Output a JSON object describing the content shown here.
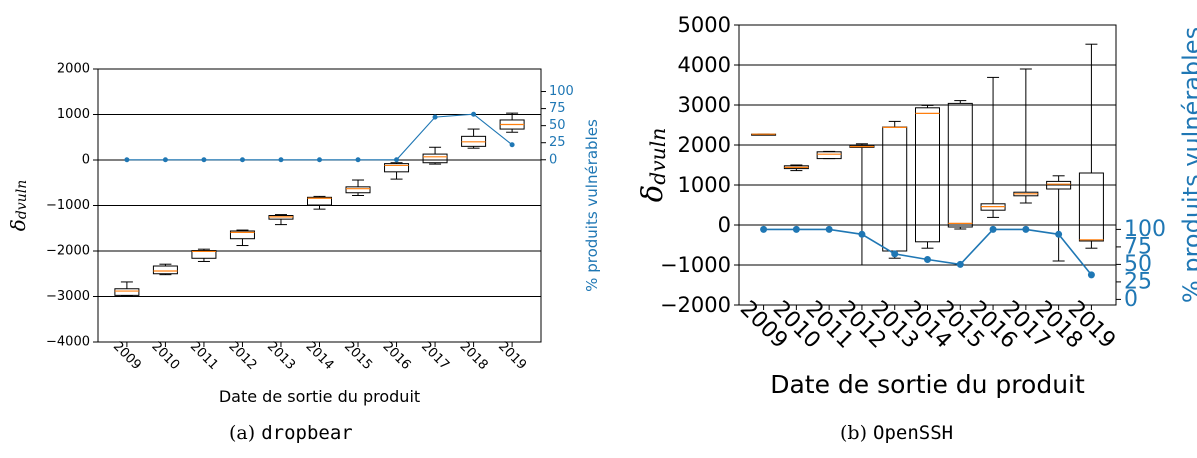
{
  "colors": {
    "box": "#000000",
    "median": "#ff7f0e",
    "pct": "#1f77b4",
    "grid": "#000000"
  },
  "captions": {
    "a_prefix": "(a)",
    "a_name": "dropbear",
    "b_prefix": "(b)",
    "b_name": "OpenSSH"
  },
  "chart_data": [
    {
      "type": "box",
      "id": "dropbear",
      "xlabel": "Date de sortie du produit",
      "ylabel": "δdvuln",
      "ylabel_main": "δ",
      "ylabel_sub": "dvuln",
      "y2label": "% produits vulnérables",
      "categories": [
        "2009",
        "2010",
        "2011",
        "2012",
        "2013",
        "2014",
        "2015",
        "2016",
        "2017",
        "2018",
        "2019"
      ],
      "ylim": [
        -4000,
        2000
      ],
      "yticks": [
        -4000,
        -3000,
        -2000,
        -1000,
        0,
        1000,
        2000
      ],
      "y2lim": [
        -267,
        133
      ],
      "y2ticks": [
        0,
        25,
        50,
        75,
        100
      ],
      "grid": "horizontal",
      "boxes": [
        {
          "whislo": -2990,
          "q1": -2975,
          "med": -2880,
          "q3": -2830,
          "whishi": -2680
        },
        {
          "whislo": -2520,
          "q1": -2500,
          "med": -2440,
          "q3": -2330,
          "whishi": -2290
        },
        {
          "whislo": -2230,
          "q1": -2160,
          "med": -2010,
          "q3": -1990,
          "whishi": -1960
        },
        {
          "whislo": -1880,
          "q1": -1730,
          "med": -1590,
          "q3": -1560,
          "whishi": -1540
        },
        {
          "whislo": -1420,
          "q1": -1300,
          "med": -1250,
          "q3": -1220,
          "whishi": -1200
        },
        {
          "whislo": -1080,
          "q1": -990,
          "med": -840,
          "q3": -820,
          "whishi": -800
        },
        {
          "whislo": -780,
          "q1": -720,
          "med": -630,
          "q3": -590,
          "whishi": -440
        },
        {
          "whislo": -420,
          "q1": -260,
          "med": -120,
          "q3": -80,
          "whishi": -60
        },
        {
          "whislo": -90,
          "q1": -60,
          "med": 70,
          "q3": 130,
          "whishi": 280
        },
        {
          "whislo": 260,
          "q1": 300,
          "med": 400,
          "q3": 520,
          "whishi": 680
        },
        {
          "whislo": 610,
          "q1": 680,
          "med": 780,
          "q3": 880,
          "whishi": 1030
        }
      ],
      "series": [
        {
          "name": "% produits vulnérables",
          "values": [
            0,
            0,
            0,
            0,
            0,
            0,
            0,
            0,
            62.5,
            66.7,
            22
          ]
        }
      ]
    },
    {
      "type": "box",
      "id": "openssh",
      "xlabel": "Date de sortie du produit",
      "ylabel": "δdvuln",
      "ylabel_main": "δ",
      "ylabel_sub": "dvuln",
      "y2label": "% produits vulnérables",
      "categories": [
        "2009",
        "2010",
        "2011",
        "2012",
        "2013",
        "2014",
        "2015",
        "2016",
        "2017",
        "2018",
        "2019"
      ],
      "ylim": [
        -2000,
        5000
      ],
      "yticks": [
        -2000,
        -1000,
        0,
        1000,
        2000,
        3000,
        4000,
        5000
      ],
      "y2lim": [
        -8,
        392
      ],
      "y2ticks": [
        0,
        25,
        50,
        75,
        100
      ],
      "grid": "horizontal",
      "boxes": [
        {
          "whislo": 2270,
          "q1": 2270,
          "med": 2270,
          "q3": 2270,
          "whishi": 2270
        },
        {
          "whislo": 1360,
          "q1": 1410,
          "med": 1440,
          "q3": 1480,
          "whishi": 1500
        },
        {
          "whislo": 1660,
          "q1": 1660,
          "med": 1770,
          "q3": 1830,
          "whishi": 1840
        },
        {
          "whislo": -1000,
          "q1": 1940,
          "med": 1960,
          "q3": 1990,
          "whishi": 2030
        },
        {
          "whislo": -830,
          "q1": -650,
          "med": 2440,
          "q3": 2450,
          "whishi": 2590
        },
        {
          "whislo": -580,
          "q1": -420,
          "med": 2790,
          "q3": 2930,
          "whishi": 2990
        },
        {
          "whislo": -100,
          "q1": -50,
          "med": 40,
          "q3": 3040,
          "whishi": 3110
        },
        {
          "whislo": 190,
          "q1": 370,
          "med": 460,
          "q3": 530,
          "whishi": 3690
        },
        {
          "whislo": 550,
          "q1": 730,
          "med": 780,
          "q3": 820,
          "whishi": 3900
        },
        {
          "whislo": -900,
          "q1": 900,
          "med": 1020,
          "q3": 1090,
          "whishi": 1230
        },
        {
          "whislo": -580,
          "q1": -400,
          "med": -370,
          "q3": 1300,
          "whishi": 4520
        }
      ],
      "series": [
        {
          "name": "% produits vulnérables",
          "values": [
            100,
            100,
            100,
            93,
            65,
            57,
            50,
            100,
            100,
            93,
            35
          ]
        }
      ]
    }
  ]
}
